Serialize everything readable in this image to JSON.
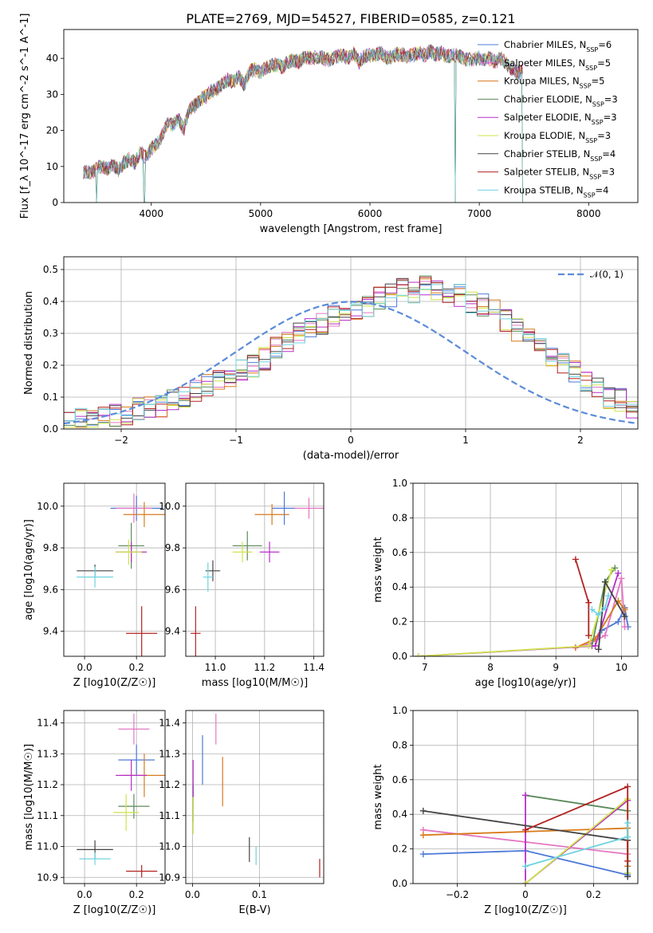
{
  "title": "PLATE=2769, MJD=54527, FIBERID=0585, z=0.121",
  "models": [
    {
      "name": "Chabrier MILES",
      "nssp": "6",
      "color": "#4e79d8"
    },
    {
      "name": "Salpeter MILES",
      "nssp": "5",
      "color": "#e377c2"
    },
    {
      "name": "Kroupa MILES",
      "nssp": "5",
      "color": "#d87a1b"
    },
    {
      "name": "Chabrier ELODIE",
      "nssp": "3",
      "color": "#5a8a5a"
    },
    {
      "name": "Salpeter ELODIE",
      "nssp": "3",
      "color": "#b62fc9"
    },
    {
      "name": "Kroupa ELODIE",
      "nssp": "3",
      "color": "#cfe34a"
    },
    {
      "name": "Chabrier STELIB",
      "nssp": "4",
      "color": "#444444"
    },
    {
      "name": "Salpeter STELIB",
      "nssp": "3",
      "color": "#b22222"
    },
    {
      "name": "Kroupa STELIB",
      "nssp": "4",
      "color": "#6ed3e0"
    }
  ],
  "chart_data": [
    {
      "type": "line",
      "name": "spectrum",
      "xlabel": "wavelength [Angstrom, rest frame]",
      "ylabel": "Flux [f_λ 10^-17 erg cm^-2 s^-1 A^-1]",
      "xlim": [
        3200,
        8450
      ],
      "ylim": [
        0,
        48
      ],
      "xticks": [
        4000,
        5000,
        6000,
        7000,
        8000
      ],
      "yticks": [
        0,
        10,
        20,
        30,
        40
      ],
      "legend_position": "right",
      "spectrum_x": [
        3380,
        3450,
        3500,
        3550,
        3600,
        3650,
        3700,
        3750,
        3800,
        3850,
        3900,
        3950,
        4000,
        4050,
        4100,
        4150,
        4200,
        4250,
        4300,
        4350,
        4400,
        4450,
        4500,
        4550,
        4600,
        4650,
        4700,
        4750,
        4800,
        4850,
        4900,
        4950,
        5000,
        5050,
        5100,
        5150,
        5200,
        5250,
        5300,
        5350,
        5400,
        5450,
        5500,
        5550,
        5600,
        5650,
        5700,
        5750,
        5800,
        5850,
        5900,
        5950,
        6000,
        6050,
        6100,
        6150,
        6200,
        6250,
        6300,
        6350,
        6400,
        6450,
        6500,
        6550,
        6600,
        6650,
        6700,
        6750,
        6800,
        6850,
        6900,
        6950,
        7000,
        7050,
        7100,
        7150,
        7200,
        7250,
        7300,
        7350,
        7400
      ],
      "spectrum_y": [
        8.5,
        8.2,
        9.5,
        10,
        9.5,
        10.5,
        9,
        11,
        12,
        11,
        14,
        12.5,
        15,
        16,
        18.5,
        22,
        21.5,
        23,
        20.5,
        26,
        27,
        28.5,
        29.5,
        31,
        31.5,
        33,
        34,
        33.5,
        35,
        32.5,
        36.5,
        37,
        36,
        37.5,
        38,
        38.2,
        37.5,
        39,
        39.5,
        39,
        40.5,
        40,
        40.2,
        40.5,
        39.5,
        40,
        40.5,
        41,
        39.8,
        41.5,
        39,
        40.5,
        40.8,
        41,
        41.5,
        40,
        40.5,
        41.2,
        41,
        40.5,
        41,
        41.5,
        40.8,
        42,
        41,
        41.5,
        40.5,
        41,
        40.8,
        40,
        39.5,
        39.8,
        40.2,
        39.5,
        40,
        39,
        40,
        38.5,
        37,
        36,
        36.5
      ],
      "spectrum_dips": [
        3500,
        3935,
        6780,
        7400
      ]
    },
    {
      "type": "bar",
      "name": "residual-histogram",
      "xlabel": "(data-model)/error",
      "ylabel": "Normed distribution",
      "xlim": [
        -2.5,
        2.5
      ],
      "ylim": [
        0,
        0.54
      ],
      "xticks": [
        -2,
        -1,
        0,
        1,
        2
      ],
      "yticks": [
        0,
        0.1,
        0.2,
        0.3,
        0.4,
        0.5
      ],
      "gaussian_legend": "𝒩(0, 1)",
      "bin_width": 0.1,
      "bin_start": -2.5,
      "base_hist": [
        0.02,
        0.03,
        0.03,
        0.04,
        0.04,
        0.05,
        0.06,
        0.07,
        0.07,
        0.09,
        0.1,
        0.12,
        0.14,
        0.15,
        0.17,
        0.19,
        0.2,
        0.22,
        0.25,
        0.27,
        0.3,
        0.32,
        0.33,
        0.35,
        0.36,
        0.38,
        0.39,
        0.41,
        0.42,
        0.44,
        0.43,
        0.45,
        0.44,
        0.43,
        0.42,
        0.4,
        0.39,
        0.37,
        0.34,
        0.31,
        0.29,
        0.26,
        0.23,
        0.2,
        0.18,
        0.15,
        0.13,
        0.1,
        0.09,
        0.07
      ]
    },
    {
      "type": "scatter",
      "name": "age-vs-metallicity",
      "xlabel": "Z [log10(Z/Z☉)]",
      "ylabel": "age [log10(age/yr)]",
      "xlim": [
        -0.08,
        0.31
      ],
      "ylim": [
        9.28,
        10.11
      ],
      "xticks": [
        0,
        0.2
      ],
      "yticks": [
        9.4,
        9.6,
        9.8,
        10.0
      ],
      "points": [
        {
          "x": 0.2,
          "y": 9.99,
          "xerr": 0.1,
          "yerr": 0.06
        },
        {
          "x": 0.19,
          "y": 9.99,
          "xerr": 0.07,
          "yerr": 0.07
        },
        {
          "x": 0.23,
          "y": 9.96,
          "xerr": 0.08,
          "yerr": 0.06
        },
        {
          "x": 0.18,
          "y": 9.81,
          "xerr": 0.05,
          "yerr": 0.11
        },
        {
          "x": 0.18,
          "y": 9.78,
          "xerr": 0.06,
          "yerr": 0.05
        },
        {
          "x": 0.17,
          "y": 9.78,
          "xerr": 0.05,
          "yerr": 0.06
        },
        {
          "x": 0.04,
          "y": 9.69,
          "xerr": 0.07,
          "yerr": 0.03
        },
        {
          "x": 0.22,
          "y": 9.39,
          "xerr": 0.06,
          "yerr": 0.13
        },
        {
          "x": 0.04,
          "y": 9.66,
          "xerr": 0.07,
          "yerr": 0.05
        }
      ]
    },
    {
      "type": "scatter",
      "name": "age-vs-mass",
      "xlabel": "mass [log10(M/M☉)]",
      "ylabel": "",
      "xlim": [
        10.88,
        11.44
      ],
      "ylim": [
        9.28,
        10.11
      ],
      "xticks": [
        11.0,
        11.2,
        11.4
      ],
      "yticks": [
        9.4,
        9.6,
        9.8,
        10.0
      ],
      "points": [
        {
          "x": 11.28,
          "y": 9.99,
          "xerr": 0.05,
          "yerr": 0.08
        },
        {
          "x": 11.38,
          "y": 9.99,
          "xerr": 0.06,
          "yerr": 0.05
        },
        {
          "x": 11.23,
          "y": 9.96,
          "xerr": 0.07,
          "yerr": 0.05
        },
        {
          "x": 11.13,
          "y": 9.81,
          "xerr": 0.06,
          "yerr": 0.07
        },
        {
          "x": 11.22,
          "y": 9.78,
          "xerr": 0.04,
          "yerr": 0.05
        },
        {
          "x": 11.11,
          "y": 9.78,
          "xerr": 0.04,
          "yerr": 0.05
        },
        {
          "x": 10.99,
          "y": 9.69,
          "xerr": 0.03,
          "yerr": 0.05
        },
        {
          "x": 10.92,
          "y": 9.39,
          "xerr": 0.02,
          "yerr": 0.13
        },
        {
          "x": 10.97,
          "y": 9.66,
          "xerr": 0.02,
          "yerr": 0.07
        }
      ]
    },
    {
      "type": "line",
      "name": "mass-weight-vs-age",
      "xlabel": "age [log10(age/yr)]",
      "ylabel": "mass weight",
      "xlim": [
        6.82,
        10.25
      ],
      "ylim": [
        0,
        1
      ],
      "xticks": [
        7,
        8,
        9,
        10
      ],
      "yticks": [
        0,
        0.2,
        0.4,
        0.6,
        0.8,
        1.0
      ],
      "series": [
        {
          "x": [
            9.7,
            9.95,
            10.05,
            10.1
          ],
          "y": [
            0.15,
            0.2,
            0.28,
            0.17
          ]
        },
        {
          "x": [
            9.3,
            9.5,
            9.75,
            10.0,
            10.05
          ],
          "y": [
            0.05,
            0.07,
            0.12,
            0.45,
            0.17
          ]
        },
        {
          "x": [
            9.3,
            9.6,
            9.95,
            10.05
          ],
          "y": [
            0.05,
            0.1,
            0.32,
            0.27
          ]
        },
        {
          "x": [
            9.55,
            9.75,
            9.9
          ],
          "y": [
            0.06,
            0.43,
            0.51
          ]
        },
        {
          "x": [
            6.9,
            9.6,
            9.95
          ],
          "y": [
            0.0,
            0.06,
            0.48
          ]
        },
        {
          "x": [
            6.9,
            9.5,
            9.85
          ],
          "y": [
            0.0,
            0.06,
            0.5
          ]
        },
        {
          "x": [
            9.65,
            9.75,
            10.05
          ],
          "y": [
            0.04,
            0.43,
            0.23
          ]
        },
        {
          "x": [
            9.3,
            9.5,
            9.5
          ],
          "y": [
            0.56,
            0.31,
            0.12
          ]
        },
        {
          "x": [
            9.55,
            9.65,
            9.75,
            9.8
          ],
          "y": [
            0.27,
            0.24,
            0.28,
            0.35
          ]
        }
      ]
    },
    {
      "type": "scatter",
      "name": "mass-vs-metallicity",
      "xlabel": "Z [log10(Z/Z☉)]",
      "ylabel": "mass [log10(M/M☉)]",
      "xlim": [
        -0.08,
        0.31
      ],
      "ylim": [
        10.88,
        11.44
      ],
      "xticks": [
        0,
        0.2
      ],
      "yticks": [
        10.9,
        11.0,
        11.1,
        11.2,
        11.3,
        11.4
      ],
      "points": [
        {
          "x": 0.2,
          "y": 11.28,
          "xerr": 0.07,
          "yerr": 0.05
        },
        {
          "x": 0.19,
          "y": 11.38,
          "xerr": 0.06,
          "yerr": 0.05
        },
        {
          "x": 0.23,
          "y": 11.23,
          "xerr": 0.09,
          "yerr": 0.07
        },
        {
          "x": 0.19,
          "y": 11.13,
          "xerr": 0.06,
          "yerr": 0.04
        },
        {
          "x": 0.18,
          "y": 11.23,
          "xerr": 0.06,
          "yerr": 0.05
        },
        {
          "x": 0.16,
          "y": 11.11,
          "xerr": 0.05,
          "yerr": 0.06
        },
        {
          "x": 0.04,
          "y": 10.99,
          "xerr": 0.07,
          "yerr": 0.03
        },
        {
          "x": 0.22,
          "y": 10.92,
          "xerr": 0.06,
          "yerr": 0.02
        },
        {
          "x": 0.04,
          "y": 10.96,
          "xerr": 0.06,
          "yerr": 0.02
        }
      ]
    },
    {
      "type": "scatter",
      "name": "mass-vs-extinction",
      "xlabel": "E(B-V)",
      "ylabel": "",
      "xlim": [
        -0.01,
        0.196
      ],
      "ylim": [
        10.88,
        11.44
      ],
      "xticks": [
        0,
        0.1
      ],
      "yticks": [
        10.9,
        11.0,
        11.1,
        11.2,
        11.3,
        11.4
      ],
      "points": [
        {
          "x": 0.015,
          "y": 11.28,
          "xerr": 0,
          "yerr": 0.08
        },
        {
          "x": 0.035,
          "y": 11.38,
          "xerr": 0,
          "yerr": 0.05
        },
        {
          "x": 0.045,
          "y": 11.21,
          "xerr": 0,
          "yerr": 0.08
        },
        {
          "x": 0.001,
          "y": 11.14,
          "xerr": 0,
          "yerr": 0.06
        },
        {
          "x": 0.001,
          "y": 11.22,
          "xerr": 0,
          "yerr": 0.06
        },
        {
          "x": 0.001,
          "y": 11.1,
          "xerr": 0,
          "yerr": 0.06
        },
        {
          "x": 0.085,
          "y": 10.99,
          "xerr": 0,
          "yerr": 0.04
        },
        {
          "x": 0.19,
          "y": 10.93,
          "xerr": 0,
          "yerr": 0.03
        },
        {
          "x": 0.095,
          "y": 10.97,
          "xerr": 0,
          "yerr": 0.03
        }
      ]
    },
    {
      "type": "line",
      "name": "mass-weight-vs-metallicity",
      "xlabel": "Z [log10(Z/Z☉)]",
      "ylabel": "mass weight",
      "xlim": [
        -0.33,
        0.33
      ],
      "ylim": [
        0,
        1
      ],
      "xticks": [
        -0.2,
        0,
        0.2
      ],
      "yticks": [
        0,
        0.2,
        0.4,
        0.6,
        0.8,
        1.0
      ],
      "series": [
        {
          "x": [
            -0.3,
            0.0,
            0.3,
            0.3
          ],
          "y": [
            0.17,
            0.19,
            0.05,
            0.04
          ]
        },
        {
          "x": [
            -0.3,
            0.0,
            0.3,
            0.3
          ],
          "y": [
            0.31,
            0.24,
            0.17,
            0.1
          ]
        },
        {
          "x": [
            -0.3,
            0.0,
            0.3,
            0.3
          ],
          "y": [
            0.28,
            0.3,
            0.32,
            0.1
          ]
        },
        {
          "x": [
            0.0,
            0.3,
            0.3
          ],
          "y": [
            0.51,
            0.42,
            0.06
          ]
        },
        {
          "x": [
            0.0,
            0.0,
            0.3
          ],
          "y": [
            0.51,
            0.0,
            0.48
          ]
        },
        {
          "x": [
            0.0,
            0.3,
            0.3
          ],
          "y": [
            0.0,
            0.49,
            0.06
          ]
        },
        {
          "x": [
            -0.3,
            0.3,
            0.3
          ],
          "y": [
            0.42,
            0.25,
            0.04
          ]
        },
        {
          "x": [
            0.0,
            0.3,
            0.3
          ],
          "y": [
            0.31,
            0.56,
            0.13
          ]
        },
        {
          "x": [
            0.0,
            0.3,
            0.3
          ],
          "y": [
            0.1,
            0.27,
            0.35
          ]
        }
      ]
    }
  ]
}
